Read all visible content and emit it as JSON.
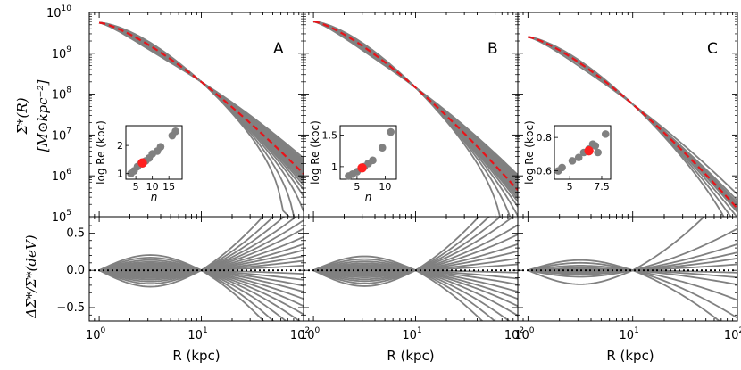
{
  "chart_data": {
    "type": "line",
    "colors": {
      "profile": "#808080",
      "devaucouleurs": "#e8141a",
      "reference": "#000000",
      "inset_point": "#808080",
      "inset_highlight": "#ff2020"
    },
    "top_ylabel_line1": "Σ*(R)",
    "top_ylabel_line2": "[M⊙kpc⁻²]",
    "bottom_ylabel": "ΔΣ*/Σ*(deV)",
    "xlabel": "R (kpc)",
    "x_scale": "log",
    "xlim": [
      0.8,
      100
    ],
    "top_y_scale": "log",
    "top_ylim": [
      100000,
      10000000000
    ],
    "top_ytick_labels": [
      {
        "value": 100000,
        "base": "10",
        "exp": "5"
      },
      {
        "value": 1000000,
        "base": "10",
        "exp": "6"
      },
      {
        "value": 10000000,
        "base": "10",
        "exp": "7"
      },
      {
        "value": 100000000,
        "base": "10",
        "exp": "8"
      },
      {
        "value": 1000000000,
        "base": "10",
        "exp": "9"
      },
      {
        "value": 10000000000,
        "base": "10",
        "exp": "10"
      }
    ],
    "bottom_ylim": [
      -0.68,
      0.72
    ],
    "bottom_ytick_labels": [
      "0.5",
      "0.0",
      "−0.5"
    ],
    "bottom_ytick_values": [
      0.5,
      0.0,
      -0.5
    ],
    "x_ticks": [
      {
        "value": 1,
        "base": "10",
        "exp": "0"
      },
      {
        "value": 10,
        "base": "10",
        "exp": "1"
      },
      {
        "value": 100,
        "base": "10",
        "exp": "2"
      }
    ],
    "panels": [
      {
        "label": "A",
        "profile": {
          "log_norm_at_1": 9.75,
          "log_norm_at_100": 6.05
        },
        "residual_slopes": [
          0.88,
          0.72,
          0.6,
          0.5,
          0.42,
          0.35,
          0.28,
          0.22,
          0.17,
          0.12,
          0.08,
          0.04,
          -0.03,
          -0.08,
          -0.13,
          -0.18,
          -0.24,
          -0.3,
          -0.37,
          -0.45,
          -0.55,
          -0.68,
          -0.82
        ],
        "inset": {
          "xlabel": "n",
          "ylabel": "log Re (kpc)",
          "xlim": [
            2,
            19
          ],
          "ylim": [
            0.8,
            2.7
          ],
          "xticks": [
            5,
            10,
            15
          ],
          "yticks": [
            1,
            2
          ],
          "points": [
            [
              3.5,
              1.0
            ],
            [
              4.5,
              1.1
            ],
            [
              5.5,
              1.25
            ],
            [
              6.5,
              1.35
            ],
            [
              7,
              1.35
            ],
            [
              8,
              1.45
            ],
            [
              9,
              1.55
            ],
            [
              10,
              1.7
            ],
            [
              11.5,
              1.8
            ],
            [
              12.5,
              1.95
            ],
            [
              16,
              2.35
            ],
            [
              17,
              2.5
            ]
          ],
          "highlight": [
            7,
            1.38
          ]
        }
      },
      {
        "label": "B",
        "profile": {
          "log_norm_at_1": 9.78,
          "log_norm_at_100": 5.65
        },
        "residual_slopes": [
          0.85,
          0.7,
          0.58,
          0.48,
          0.38,
          0.3,
          0.22,
          0.16,
          0.1,
          0.05,
          -0.02,
          -0.07,
          -0.12,
          -0.18,
          -0.24,
          -0.3,
          -0.38,
          -0.48,
          -0.6,
          -0.75
        ],
        "inset": {
          "xlabel": "n",
          "ylabel": "log Re (kpc)",
          "xlim": [
            2,
            12
          ],
          "ylim": [
            0.8,
            1.65
          ],
          "xticks": [
            5,
            10
          ],
          "yticks": [
            1.0,
            1.5
          ],
          "points": [
            [
              3.5,
              0.85
            ],
            [
              4.2,
              0.88
            ],
            [
              5,
              0.92
            ],
            [
              5.8,
              0.97
            ],
            [
              6.3,
              1.0
            ],
            [
              7,
              1.05
            ],
            [
              7.8,
              1.1
            ],
            [
              9.5,
              1.3
            ],
            [
              11,
              1.55
            ]
          ],
          "highlight": [
            5.9,
            0.98
          ]
        }
      },
      {
        "label": "C",
        "profile": {
          "log_norm_at_1": 9.4,
          "log_norm_at_100": 5.2
        },
        "residual_slopes": [
          0.75,
          0.35,
          0.22,
          0.15,
          0.1,
          0.05,
          -0.02,
          -0.06,
          -0.12,
          -0.25,
          -0.4,
          -0.55
        ],
        "inset": {
          "xlabel": "",
          "ylabel": "log Re (kpc)",
          "xlim": [
            3.8,
            8.2
          ],
          "ylim": [
            0.55,
            0.87
          ],
          "xticks": [
            5.0,
            7.5
          ],
          "ytick_labels": [
            "0.6",
            "0.8"
          ],
          "yticks": [
            0.6,
            0.8
          ],
          "points": [
            [
              4.1,
              0.6
            ],
            [
              4.4,
              0.62
            ],
            [
              5.2,
              0.66
            ],
            [
              5.7,
              0.68
            ],
            [
              6.1,
              0.71
            ],
            [
              6.5,
              0.73
            ],
            [
              6.8,
              0.76
            ],
            [
              7.0,
              0.75
            ],
            [
              7.2,
              0.71
            ],
            [
              7.8,
              0.82
            ]
          ],
          "highlight": [
            6.5,
            0.72
          ]
        }
      }
    ]
  }
}
